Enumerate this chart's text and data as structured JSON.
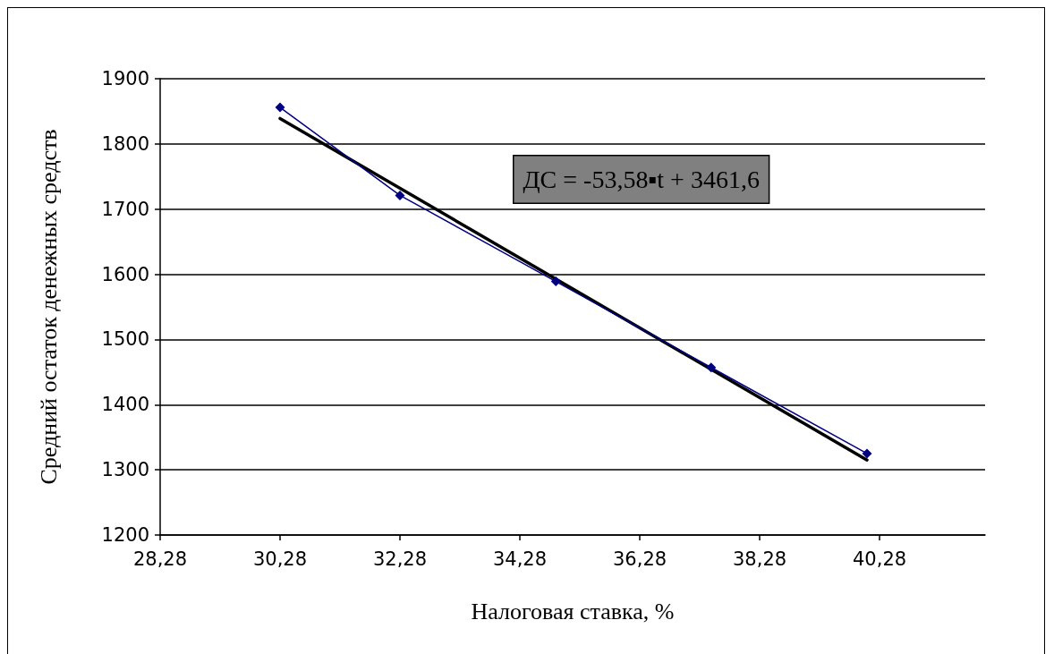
{
  "chart_data": {
    "type": "line",
    "xlabel": "Налоговая ставка, %",
    "ylabel": "Средний остаток денежных средств",
    "x": [
      30.28,
      32.28,
      34.88,
      37.47,
      40.07
    ],
    "series": [
      {
        "color": "#000080",
        "marker": "diamond",
        "values": [
          1856,
          1721,
          1589,
          1457,
          1325
        ]
      },
      {
        "color": "#000000",
        "marker": "none",
        "x": [
          30.28,
          40.07
        ],
        "values": [
          1839,
          1315
        ]
      }
    ],
    "xlim": [
      28.28,
      42.04
    ],
    "xticks": [
      {
        "value": 28.28,
        "label": "28,28"
      },
      {
        "value": 30.28,
        "label": "30,28"
      },
      {
        "value": 32.28,
        "label": "32,28"
      },
      {
        "value": 34.28,
        "label": "34,28"
      },
      {
        "value": 36.28,
        "label": "36,28"
      },
      {
        "value": 38.28,
        "label": "38,28"
      },
      {
        "value": 40.28,
        "label": "40,28"
      }
    ],
    "ylim": [
      1200,
      1900
    ],
    "yticks": [
      1200,
      1300,
      1400,
      1500,
      1600,
      1700,
      1800,
      1900
    ],
    "grid": "y",
    "annotations": [
      "ДС = -53,58▪t + 3461,6"
    ]
  }
}
